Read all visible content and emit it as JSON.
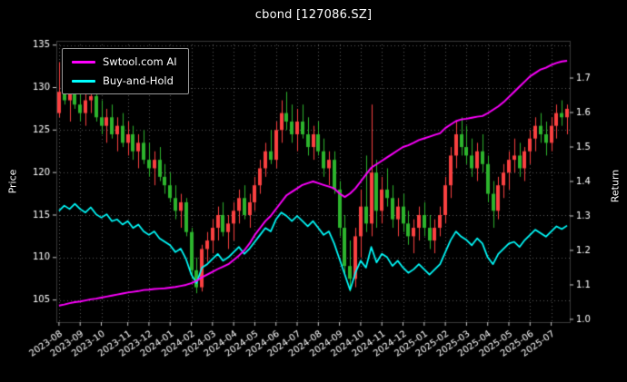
{
  "chart_data": {
    "type": "candlestick+line",
    "title": "cbond [127086.SZ]",
    "ylabel_left": "Price",
    "ylabel_right": "Return",
    "grid": true,
    "legend_position": "upper-left",
    "legend": [
      {
        "label": "Swtool.com AI",
        "color": "#ff00ff"
      },
      {
        "label": "Buy-and-Hold",
        "color": "#00ffff"
      }
    ],
    "colors": {
      "background": "#000000",
      "text": "#ffffff",
      "grid": "#5a5a5a",
      "frame": "#3a3a3a",
      "up": "#fb4141",
      "down": "#2db52d",
      "ai_line": "#ff00ff",
      "bh_line": "#00ffff"
    },
    "y_left_ticks": [
      105,
      110,
      115,
      120,
      125,
      130,
      135
    ],
    "y_right_ticks": [
      1.0,
      1.1,
      1.2,
      1.3,
      1.4,
      1.5,
      1.6,
      1.7
    ],
    "ylim_price": [
      102.4,
      135.5
    ],
    "ylim_return": [
      0.992,
      1.808
    ],
    "x_tick_labels": [
      "2023-08",
      "2023-09",
      "2023-10",
      "2023-11",
      "2023-12",
      "2024-01",
      "2024-02",
      "2024-03",
      "2024-04",
      "2024-05",
      "2024-06",
      "2024-07",
      "2024-08",
      "2024-09",
      "2024-10",
      "2024-11",
      "2024-12",
      "2025-01",
      "2025-02",
      "2025-03",
      "2025-04",
      "2025-05",
      "2025-06",
      "2025-07"
    ],
    "x_tick_indices": [
      0,
      4,
      8,
      13,
      17,
      21,
      25,
      29,
      33,
      37,
      41,
      45,
      49,
      53,
      57,
      61,
      65,
      69,
      73,
      77,
      81,
      85,
      89,
      93
    ],
    "candles": [
      [
        127.0,
        133.0,
        126.5,
        129.5
      ],
      [
        129.5,
        133.5,
        128.0,
        128.5
      ],
      [
        128.5,
        131.0,
        126.0,
        130.0
      ],
      [
        130.0,
        131.5,
        127.5,
        128.0
      ],
      [
        128.0,
        130.5,
        126.0,
        127.0
      ],
      [
        127.0,
        129.5,
        125.5,
        128.5
      ],
      [
        128.5,
        132.0,
        127.0,
        129.0
      ],
      [
        129.0,
        130.0,
        126.0,
        126.5
      ],
      [
        126.5,
        128.5,
        124.5,
        125.5
      ],
      [
        125.5,
        127.5,
        123.5,
        126.5
      ],
      [
        126.5,
        128.0,
        124.0,
        124.5
      ],
      [
        124.5,
        126.5,
        122.5,
        125.5
      ],
      [
        125.5,
        127.0,
        123.0,
        123.5
      ],
      [
        123.5,
        126.0,
        122.0,
        124.5
      ],
      [
        124.5,
        125.5,
        121.5,
        122.5
      ],
      [
        122.5,
        124.5,
        120.5,
        123.5
      ],
      [
        123.5,
        125.0,
        121.0,
        121.5
      ],
      [
        121.5,
        123.5,
        119.5,
        120.5
      ],
      [
        120.5,
        122.5,
        118.5,
        121.5
      ],
      [
        121.5,
        123.0,
        119.0,
        119.5
      ],
      [
        119.5,
        121.0,
        117.5,
        118.5
      ],
      [
        118.5,
        120.0,
        116.5,
        117.0
      ],
      [
        117.0,
        118.5,
        114.5,
        115.5
      ],
      [
        115.5,
        117.5,
        113.5,
        116.5
      ],
      [
        116.5,
        117.0,
        112.5,
        113.0
      ],
      [
        113.0,
        113.5,
        107.5,
        108.5
      ],
      [
        108.5,
        110.0,
        105.8,
        106.5
      ],
      [
        106.5,
        111.5,
        106.0,
        111.0
      ],
      [
        111.0,
        113.0,
        109.5,
        112.0
      ],
      [
        112.0,
        114.5,
        110.5,
        113.5
      ],
      [
        113.5,
        116.0,
        112.0,
        115.0
      ],
      [
        115.0,
        116.5,
        112.5,
        113.0
      ],
      [
        113.0,
        115.0,
        111.0,
        114.0
      ],
      [
        114.0,
        116.5,
        112.0,
        115.5
      ],
      [
        115.5,
        118.0,
        114.0,
        117.0
      ],
      [
        117.0,
        118.5,
        114.5,
        115.0
      ],
      [
        115.0,
        117.5,
        113.5,
        116.5
      ],
      [
        116.5,
        119.5,
        115.5,
        118.5
      ],
      [
        118.5,
        121.5,
        117.5,
        120.5
      ],
      [
        120.5,
        123.5,
        119.5,
        122.5
      ],
      [
        122.5,
        125.0,
        121.0,
        121.5
      ],
      [
        121.5,
        126.0,
        120.5,
        125.0
      ],
      [
        125.0,
        128.5,
        123.5,
        127.0
      ],
      [
        127.0,
        129.5,
        125.0,
        126.0
      ],
      [
        126.0,
        128.0,
        123.5,
        124.5
      ],
      [
        124.5,
        127.5,
        122.5,
        126.0
      ],
      [
        126.0,
        128.0,
        124.0,
        124.5
      ],
      [
        124.5,
        126.5,
        122.0,
        123.0
      ],
      [
        123.0,
        125.5,
        121.5,
        124.5
      ],
      [
        124.5,
        126.0,
        122.0,
        122.5
      ],
      [
        122.5,
        124.0,
        119.5,
        120.5
      ],
      [
        120.5,
        122.5,
        118.5,
        121.5
      ],
      [
        121.5,
        122.5,
        117.5,
        118.0
      ],
      [
        118.0,
        119.0,
        112.5,
        113.5
      ],
      [
        113.5,
        115.0,
        108.0,
        109.0
      ],
      [
        109.0,
        112.0,
        106.0,
        107.5
      ],
      [
        107.5,
        113.5,
        106.5,
        112.5
      ],
      [
        112.5,
        118.0,
        110.0,
        116.0
      ],
      [
        116.0,
        122.0,
        113.0,
        114.0
      ],
      [
        114.0,
        128.0,
        112.5,
        120.0
      ],
      [
        120.0,
        121.5,
        113.5,
        115.5
      ],
      [
        115.5,
        119.5,
        114.0,
        118.0
      ],
      [
        118.0,
        120.5,
        116.0,
        117.0
      ],
      [
        117.0,
        118.5,
        113.5,
        114.5
      ],
      [
        114.5,
        117.0,
        112.5,
        116.0
      ],
      [
        116.0,
        117.5,
        113.0,
        114.0
      ],
      [
        114.0,
        115.5,
        111.5,
        112.5
      ],
      [
        112.5,
        114.5,
        110.5,
        113.5
      ],
      [
        113.5,
        116.0,
        112.0,
        115.0
      ],
      [
        115.0,
        116.5,
        112.5,
        113.5
      ],
      [
        113.5,
        115.0,
        111.0,
        112.0
      ],
      [
        112.0,
        114.5,
        110.5,
        113.5
      ],
      [
        113.5,
        116.0,
        112.5,
        115.0
      ],
      [
        115.0,
        119.5,
        114.0,
        118.5
      ],
      [
        118.5,
        123.0,
        117.0,
        122.0
      ],
      [
        122.0,
        126.0,
        120.5,
        124.5
      ],
      [
        124.5,
        126.5,
        122.0,
        123.0
      ],
      [
        123.0,
        125.5,
        121.0,
        122.0
      ],
      [
        122.0,
        124.0,
        119.5,
        120.5
      ],
      [
        120.5,
        123.5,
        119.0,
        122.5
      ],
      [
        122.5,
        124.5,
        120.0,
        121.0
      ],
      [
        121.0,
        122.0,
        116.5,
        117.5
      ],
      [
        117.5,
        119.0,
        113.5,
        115.5
      ],
      [
        115.5,
        119.5,
        114.5,
        118.5
      ],
      [
        118.5,
        121.0,
        117.0,
        120.0
      ],
      [
        120.0,
        122.5,
        118.0,
        121.5
      ],
      [
        121.5,
        124.0,
        120.0,
        122.0
      ],
      [
        122.0,
        123.5,
        119.5,
        120.5
      ],
      [
        120.5,
        123.0,
        119.0,
        122.5
      ],
      [
        122.5,
        125.0,
        121.0,
        124.0
      ],
      [
        124.0,
        126.5,
        122.5,
        125.5
      ],
      [
        125.5,
        127.0,
        123.5,
        124.5
      ],
      [
        124.5,
        126.0,
        122.0,
        123.5
      ],
      [
        123.5,
        126.5,
        122.5,
        125.5
      ],
      [
        125.5,
        128.0,
        124.0,
        127.0
      ],
      [
        127.0,
        128.5,
        125.5,
        126.5
      ],
      [
        126.5,
        128.0,
        124.5,
        127.5
      ]
    ],
    "ai_return": [
      1.04,
      1.043,
      1.047,
      1.05,
      1.052,
      1.055,
      1.058,
      1.06,
      1.063,
      1.066,
      1.069,
      1.072,
      1.075,
      1.078,
      1.08,
      1.082,
      1.085,
      1.086,
      1.088,
      1.089,
      1.09,
      1.092,
      1.094,
      1.097,
      1.1,
      1.105,
      1.112,
      1.122,
      1.13,
      1.138,
      1.146,
      1.153,
      1.16,
      1.172,
      1.185,
      1.2,
      1.22,
      1.245,
      1.265,
      1.285,
      1.3,
      1.32,
      1.34,
      1.36,
      1.37,
      1.38,
      1.39,
      1.395,
      1.4,
      1.395,
      1.39,
      1.385,
      1.38,
      1.365,
      1.355,
      1.365,
      1.38,
      1.4,
      1.42,
      1.44,
      1.45,
      1.46,
      1.47,
      1.48,
      1.49,
      1.5,
      1.505,
      1.512,
      1.52,
      1.525,
      1.53,
      1.535,
      1.54,
      1.555,
      1.565,
      1.575,
      1.58,
      1.582,
      1.585,
      1.588,
      1.59,
      1.598,
      1.608,
      1.618,
      1.63,
      1.645,
      1.66,
      1.675,
      1.69,
      1.705,
      1.715,
      1.725,
      1.73,
      1.738,
      1.744,
      1.748,
      1.75
    ],
    "buy_hold_return": [
      1.315,
      1.33,
      1.32,
      1.335,
      1.32,
      1.31,
      1.325,
      1.305,
      1.295,
      1.305,
      1.285,
      1.29,
      1.275,
      1.285,
      1.265,
      1.275,
      1.255,
      1.245,
      1.255,
      1.235,
      1.225,
      1.215,
      1.195,
      1.205,
      1.175,
      1.13,
      1.105,
      1.15,
      1.16,
      1.175,
      1.19,
      1.17,
      1.18,
      1.195,
      1.21,
      1.19,
      1.205,
      1.225,
      1.245,
      1.265,
      1.255,
      1.29,
      1.31,
      1.3,
      1.285,
      1.3,
      1.285,
      1.27,
      1.285,
      1.265,
      1.245,
      1.255,
      1.22,
      1.175,
      1.13,
      1.085,
      1.135,
      1.17,
      1.15,
      1.21,
      1.165,
      1.19,
      1.18,
      1.155,
      1.17,
      1.15,
      1.135,
      1.145,
      1.16,
      1.145,
      1.13,
      1.145,
      1.16,
      1.195,
      1.23,
      1.255,
      1.24,
      1.23,
      1.215,
      1.235,
      1.22,
      1.18,
      1.16,
      1.19,
      1.205,
      1.22,
      1.225,
      1.21,
      1.23,
      1.245,
      1.26,
      1.25,
      1.24,
      1.255,
      1.27,
      1.262,
      1.272
    ]
  }
}
